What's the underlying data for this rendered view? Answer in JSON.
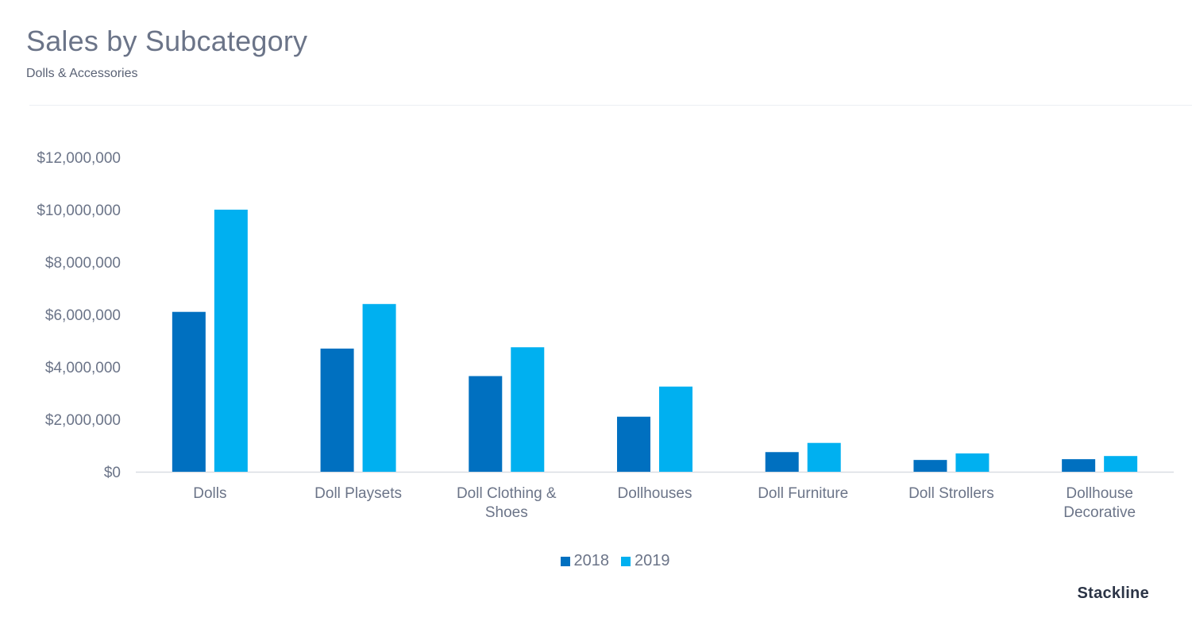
{
  "header": {
    "title": "Sales by Subcategory",
    "subtitle": "Dolls & Accessories"
  },
  "brand": "Stackline",
  "colors": {
    "series_2018": "#0070c0",
    "series_2019": "#00b0f0",
    "axis_text": "#6b7488"
  },
  "chart_data": {
    "type": "bar",
    "categories": [
      [
        "Dolls"
      ],
      [
        "Doll Playsets"
      ],
      [
        "Doll Clothing &",
        "Shoes"
      ],
      [
        "Dollhouses"
      ],
      [
        "Doll Furniture"
      ],
      [
        "Doll Strollers"
      ],
      [
        "Dollhouse",
        "Decorative"
      ]
    ],
    "series": [
      {
        "name": "2018",
        "color": "#0070c0",
        "values": [
          6100000,
          4700000,
          3650000,
          2100000,
          750000,
          450000,
          480000
        ]
      },
      {
        "name": "2019",
        "color": "#00b0f0",
        "values": [
          10000000,
          6400000,
          4750000,
          3250000,
          1100000,
          700000,
          600000
        ]
      }
    ],
    "ylim": [
      0,
      12000000
    ],
    "yticks": [
      {
        "value": 0,
        "label": "$0"
      },
      {
        "value": 2000000,
        "label": "$2,000,000"
      },
      {
        "value": 4000000,
        "label": "$4,000,000"
      },
      {
        "value": 6000000,
        "label": "$6,000,000"
      },
      {
        "value": 8000000,
        "label": "$8,000,000"
      },
      {
        "value": 10000000,
        "label": "$10,000,000"
      },
      {
        "value": 12000000,
        "label": "$12,000,000"
      }
    ],
    "grid": false,
    "legend_position": "bottom-center"
  }
}
